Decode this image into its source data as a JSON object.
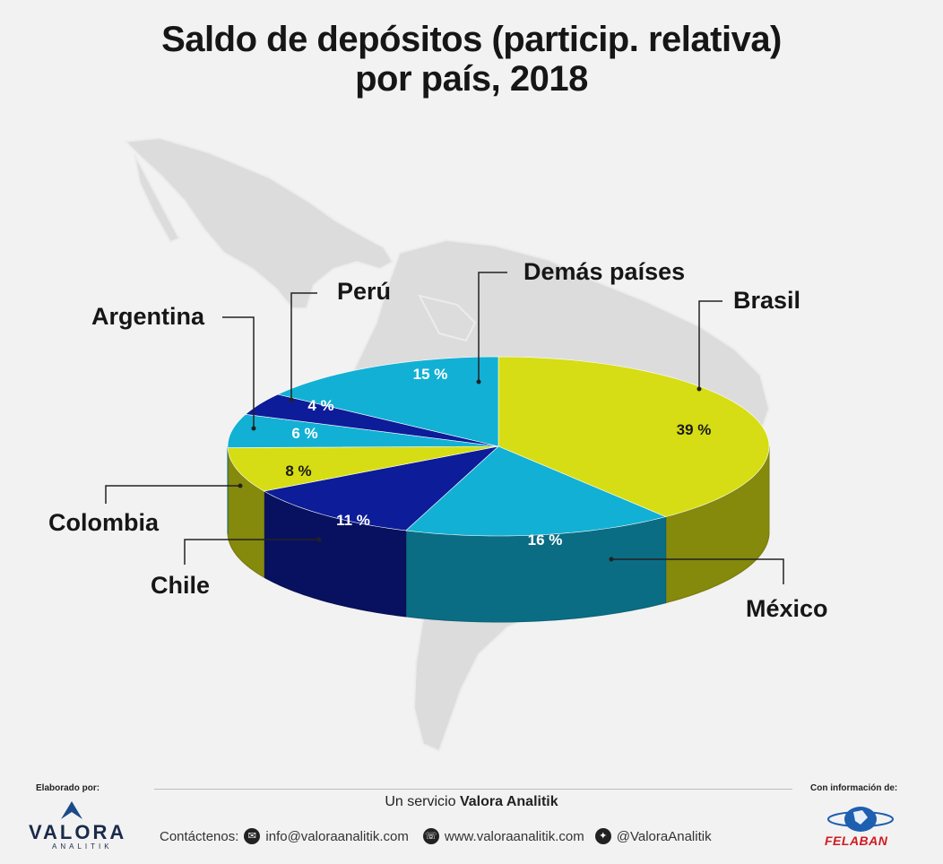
{
  "chart_data": {
    "type": "pie",
    "title": "Saldo de depósitos (particip. relativa) por país, 2018",
    "title_lines": [
      "Saldo de depósitos (particip. relativa)",
      "por país, 2018"
    ],
    "unit": "%",
    "slices": [
      {
        "name": "Brasil",
        "value": 39,
        "label": "39 %",
        "color": "#d6dd14"
      },
      {
        "name": "México",
        "value": 16,
        "label": "16 %",
        "color": "#12b0d4"
      },
      {
        "name": "Chile",
        "value": 11,
        "label": "11 %",
        "color": "#0d1c99"
      },
      {
        "name": "Colombia",
        "value": 8,
        "label": "8 %",
        "color": "#d6dd14"
      },
      {
        "name": "Argentina",
        "value": 6,
        "label": "6 %",
        "color": "#12b0d4"
      },
      {
        "name": "Perú",
        "value": 4,
        "label": "4 %",
        "color": "#0d1c99"
      },
      {
        "name": "Demás países",
        "value": 15,
        "label": "15 %",
        "color": "#12b0d4"
      }
    ]
  },
  "footer": {
    "made_by_label": "Elaborado por:",
    "info_from_label": "Con información de:",
    "service_prefix": "Un servicio ",
    "service_brand": "Valora Analitik",
    "contact_label": "Contáctenos:",
    "email": "info@valoraanalitik.com",
    "website": "www.valoraanalitik.com",
    "twitter": "@ValoraAnalitik",
    "logo_left": "VALORA",
    "logo_left_sub": "ANALITIK",
    "logo_right": "FELABAN"
  },
  "colors": {
    "map": "#dcdcdc",
    "text": "#161616"
  },
  "icons": [
    "email-icon",
    "whatsapp-icon",
    "twitter-icon"
  ]
}
